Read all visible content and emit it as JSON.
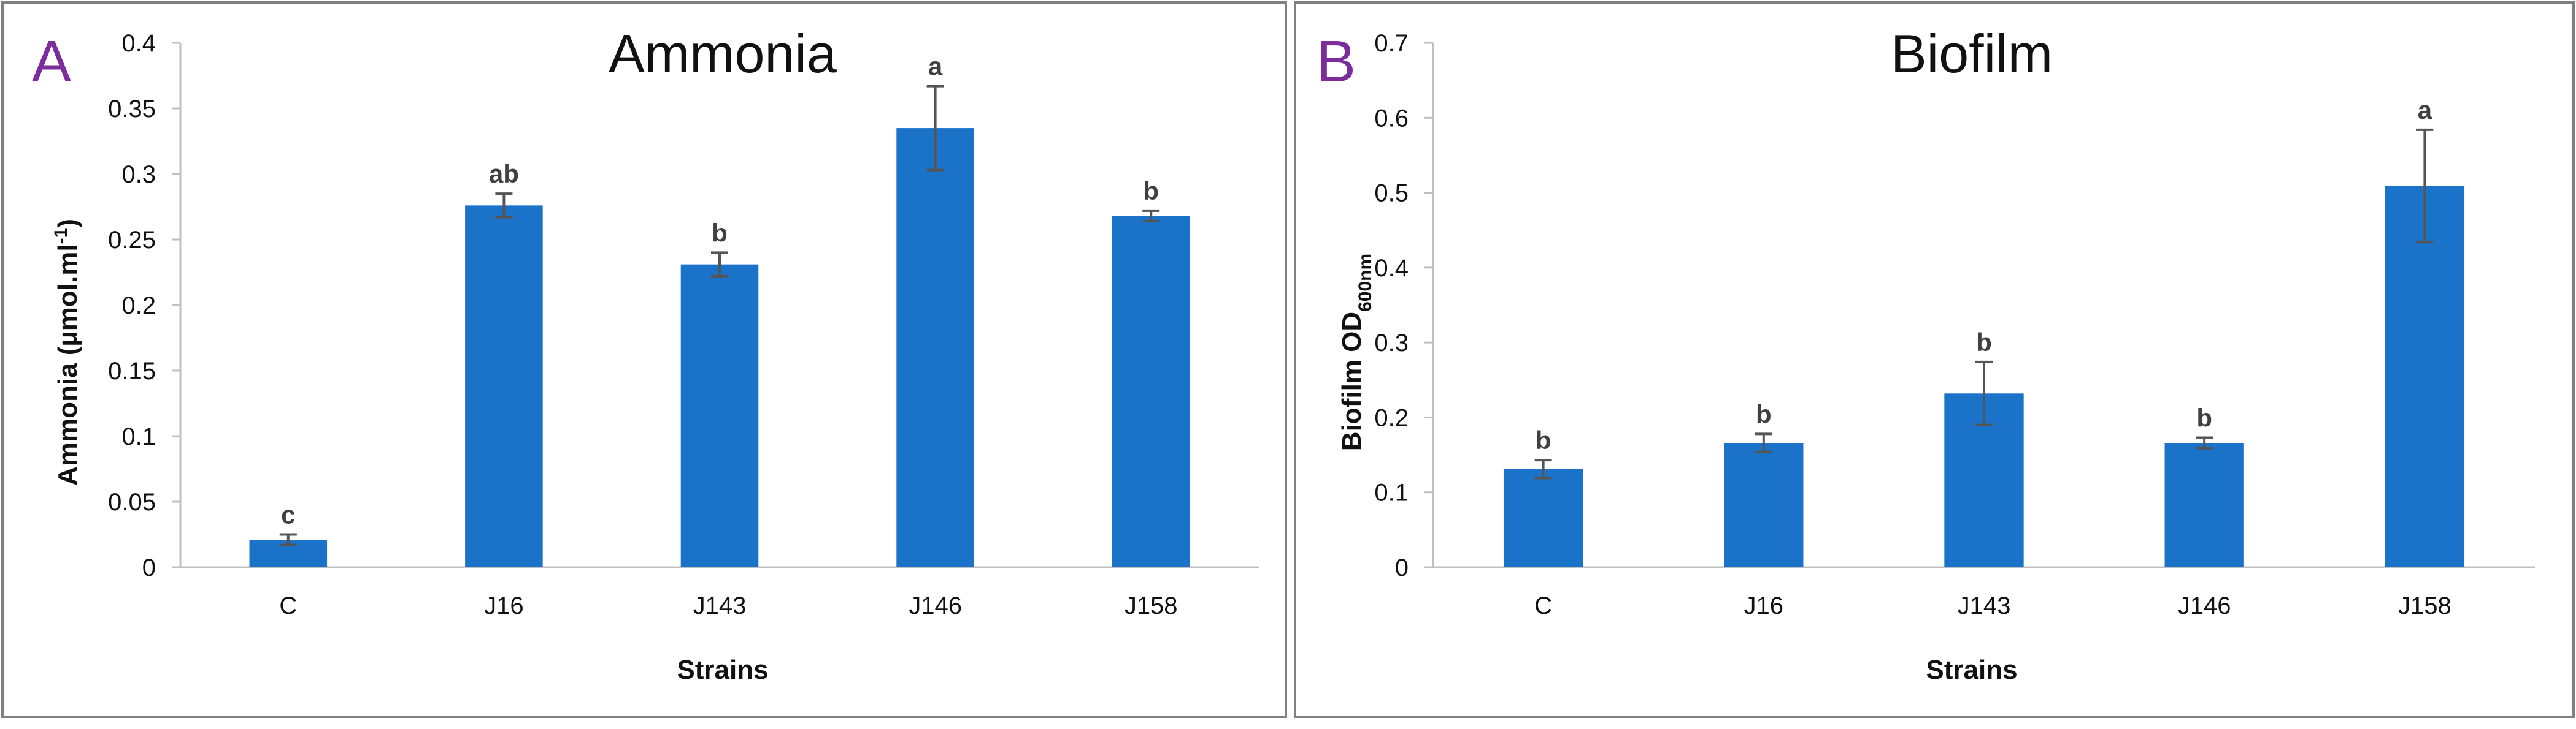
{
  "colors": {
    "bar": "#1a72c9",
    "error": "#555555",
    "panel_letter": "#7b2d9c",
    "frame": "#808080",
    "axis": "#bfbfbf",
    "text": "#111111"
  },
  "chart_data": [
    {
      "panel_letter": "A",
      "type": "bar",
      "title": "Ammonia",
      "xlabel": "Strains",
      "ylabel": "Ammonia (µmol.ml",
      "ylabel_sup": "-1",
      "ylabel_close": ")",
      "categories": [
        "C",
        "J16",
        "J143",
        "J146",
        "J158"
      ],
      "values": [
        0.021,
        0.276,
        0.231,
        0.335,
        0.268
      ],
      "errors": [
        0.004,
        0.009,
        0.009,
        0.032,
        0.004
      ],
      "letters": [
        "c",
        "ab",
        "b",
        "a",
        "b"
      ],
      "ylim": [
        0,
        0.4
      ],
      "yticks": [
        0,
        0.05,
        0.1,
        0.15,
        0.2,
        0.25,
        0.3,
        0.35,
        0.4
      ],
      "ytick_labels": [
        "0",
        "0.05",
        "0.1",
        "0.15",
        "0.2",
        "0.25",
        "0.3",
        "0.35",
        "0.4"
      ],
      "grid": false
    },
    {
      "panel_letter": "B",
      "type": "bar",
      "title": "Biofilm",
      "xlabel": "Strains",
      "ylabel": "Biofilm OD",
      "ylabel_sub": "600nm",
      "categories": [
        "C",
        "J16",
        "J143",
        "J146",
        "J158"
      ],
      "values": [
        0.131,
        0.166,
        0.232,
        0.166,
        0.509
      ],
      "errors": [
        0.012,
        0.012,
        0.042,
        0.007,
        0.075
      ],
      "letters": [
        "b",
        "b",
        "b",
        "b",
        "a"
      ],
      "ylim": [
        0,
        0.7
      ],
      "yticks": [
        0,
        0.1,
        0.2,
        0.3,
        0.4,
        0.5,
        0.6,
        0.7
      ],
      "ytick_labels": [
        "0",
        "0.1",
        "0.2",
        "0.3",
        "0.4",
        "0.5",
        "0.6",
        "0.7"
      ],
      "grid": false
    }
  ]
}
